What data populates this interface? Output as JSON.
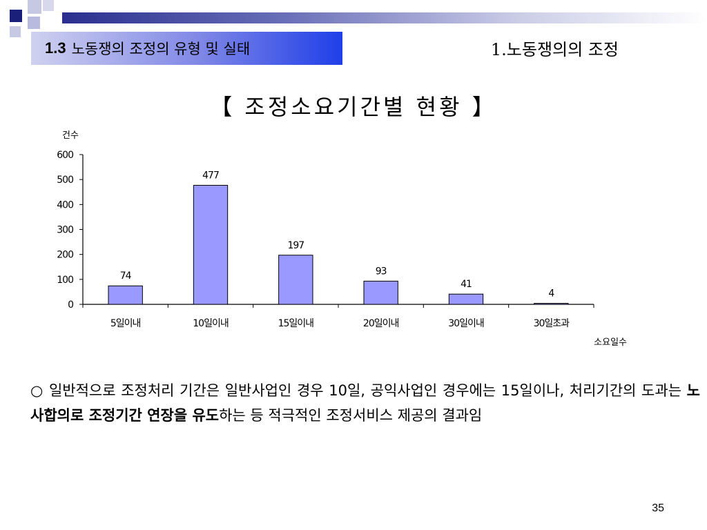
{
  "header": {
    "section_number": "1.3",
    "section_title": "노동쟁의 조정의 유형 및 실태",
    "chapter_title": "1.노동쟁의의 조정",
    "accent_color": "#1f3fe8",
    "band_color": "#2a2f8f"
  },
  "chart_title": "【 조정소요기간별 현황 】",
  "chart_data": {
    "type": "bar",
    "title": "【 조정소요기간별 현황 】",
    "ylabel": "건수",
    "xlabel": "소요일수",
    "categories": [
      "5일이내",
      "10일이내",
      "15일이내",
      "20일이내",
      "30일이내",
      "30일초과"
    ],
    "values": [
      74,
      477,
      197,
      93,
      41,
      4
    ],
    "ylim": [
      0,
      600
    ],
    "yticks": [
      0,
      100,
      200,
      300,
      400,
      500,
      600
    ],
    "bar_color": "#9999ff",
    "grid": false,
    "data_labels": true
  },
  "body": {
    "text_part1": "○ 일반적으로 조정처리 기간은 일반사업인 경우 10일, 공익사업인 경우에는 15일이나, 처리기간의 도과는 ",
    "text_bold": "노사합의로 조정기간 연장을 유도",
    "text_part2": "하는 등 적극적인 조정서비스 제공의 결과임"
  },
  "page_number": "35"
}
